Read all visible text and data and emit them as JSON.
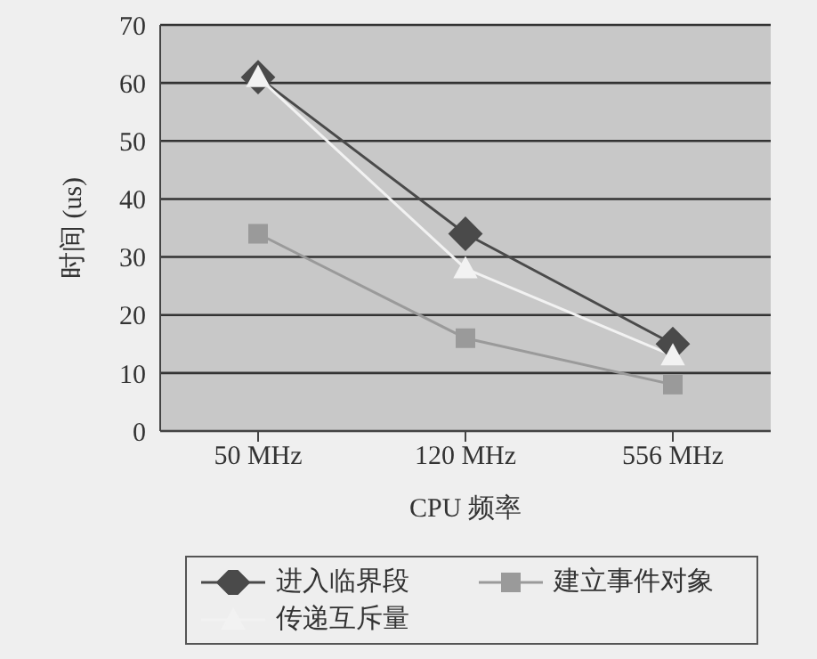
{
  "chart_data": {
    "type": "line",
    "xlabel": "CPU 频率",
    "ylabel": "时间 (us)",
    "categories": [
      "50 MHz",
      "120 MHz",
      "556 MHz"
    ],
    "series": [
      {
        "name": "进入临界段",
        "color": "#4a4a4a",
        "marker": "diamond",
        "values": [
          61,
          34,
          15
        ]
      },
      {
        "name": "建立事件对象",
        "color": "#9a9a9a",
        "marker": "square",
        "values": [
          34,
          16,
          8
        ]
      },
      {
        "name": "传递互斥量",
        "color": "#f2f2f2",
        "marker": "triangle",
        "values": [
          61,
          28,
          13
        ]
      }
    ],
    "ylim": [
      0,
      70
    ],
    "yticks": [
      0,
      10,
      20,
      30,
      40,
      50,
      60,
      70
    ],
    "grid": "y",
    "legend": "bottom"
  }
}
